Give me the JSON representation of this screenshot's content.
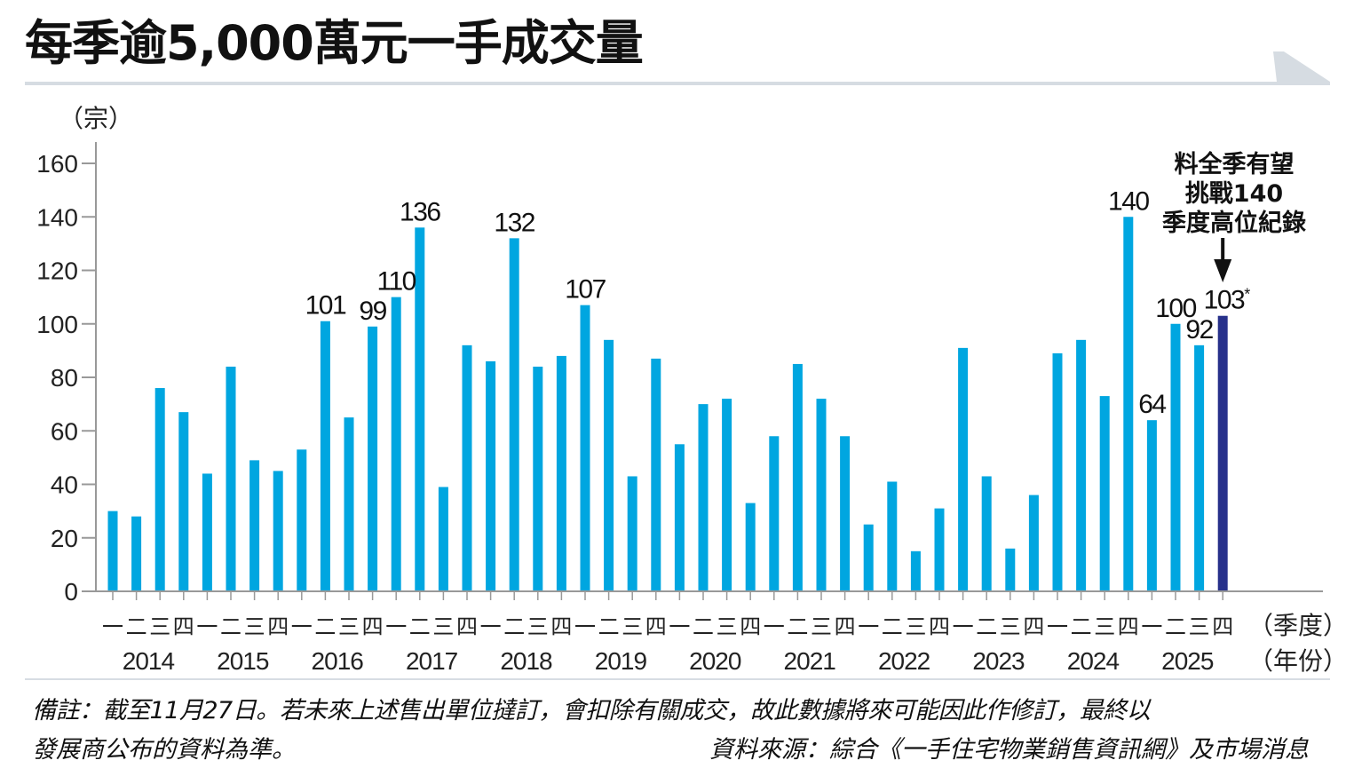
{
  "header": {
    "title": "每季逾5,000萬元一手成交量"
  },
  "colors": {
    "bar": "#00a6e0",
    "bar_highlight": "#27318b",
    "axis": "#999999",
    "title_bar": "#d6dce2"
  },
  "chart_data": {
    "type": "bar",
    "title": "每季逾5,000萬元一手成交量",
    "ylabel": "（宗）",
    "xlabel_quarter": "（季度）",
    "xlabel_year": "（年份）",
    "ylim": [
      0,
      160
    ],
    "yticks": [
      0,
      20,
      40,
      60,
      80,
      100,
      120,
      140,
      160
    ],
    "grid": false,
    "years": [
      "2014",
      "2015",
      "2016",
      "2017",
      "2018",
      "2019",
      "2020",
      "2021",
      "2022",
      "2023",
      "2024",
      "2025"
    ],
    "quarter_names": [
      "一",
      "二",
      "三",
      "四"
    ],
    "values": [
      30,
      28,
      76,
      67,
      44,
      84,
      49,
      45,
      53,
      101,
      65,
      99,
      110,
      136,
      39,
      92,
      86,
      132,
      84,
      88,
      107,
      94,
      43,
      87,
      55,
      70,
      72,
      33,
      58,
      85,
      72,
      58,
      25,
      41,
      15,
      31,
      91,
      43,
      16,
      36,
      89,
      94,
      73,
      140,
      64,
      100,
      92,
      103
    ],
    "data_labels": [
      {
        "index": 9,
        "text": "101"
      },
      {
        "index": 11,
        "text": "99"
      },
      {
        "index": 12,
        "text": "110"
      },
      {
        "index": 13,
        "text": "136"
      },
      {
        "index": 17,
        "text": "132"
      },
      {
        "index": 20,
        "text": "107"
      },
      {
        "index": 43,
        "text": "140"
      },
      {
        "index": 44,
        "text": "64"
      },
      {
        "index": 45,
        "text": "100"
      },
      {
        "index": 46,
        "text": "92"
      },
      {
        "index": 47,
        "text": "103*"
      }
    ],
    "highlight_index": 47,
    "annotation": {
      "lines": [
        "料全季有望",
        "挑戰140",
        "季度高位紀錄"
      ],
      "target_index": 47
    }
  },
  "footer": {
    "note_line1": "備註：截至11月27日。若未來上述售出單位撻訂，會扣除有關成交，故此數據將來可能因此作修訂，最終以",
    "note_line2": "發展商公布的資料為準。",
    "source": "資料來源：綜合《一手住宅物業銷售資訊網》及市場消息"
  }
}
